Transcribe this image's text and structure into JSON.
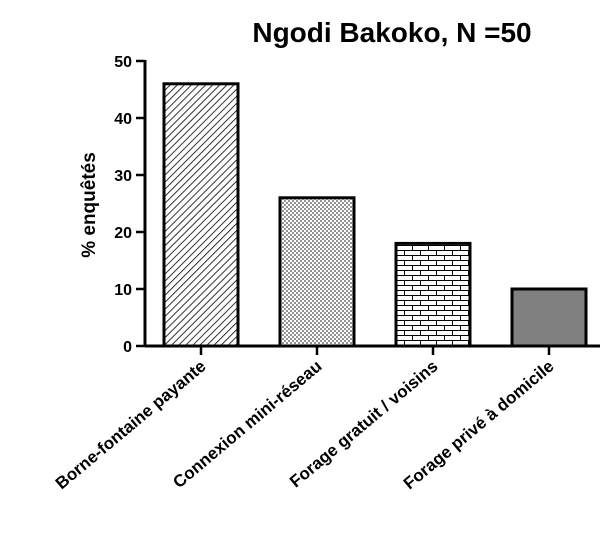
{
  "chart_data": {
    "type": "bar",
    "title": "Ngodi Bakoko, N =50",
    "xlabel": "",
    "ylabel": "% enquêtés",
    "ylim": [
      0,
      50
    ],
    "yticks": [
      0,
      10,
      20,
      30,
      40,
      50
    ],
    "categories": [
      "Borne-fontaine payante",
      "Connexion mini-réseau",
      "Forage gratuit / voisins",
      "Forage privé à domicile"
    ],
    "values": [
      46,
      26,
      18,
      10
    ],
    "fill_patterns": [
      "diagonal-hatch",
      "dots",
      "brick",
      "solid-gray"
    ],
    "colors": {
      "bar_stroke": "#000000",
      "solid_fill": "#808080"
    },
    "grid": false
  }
}
